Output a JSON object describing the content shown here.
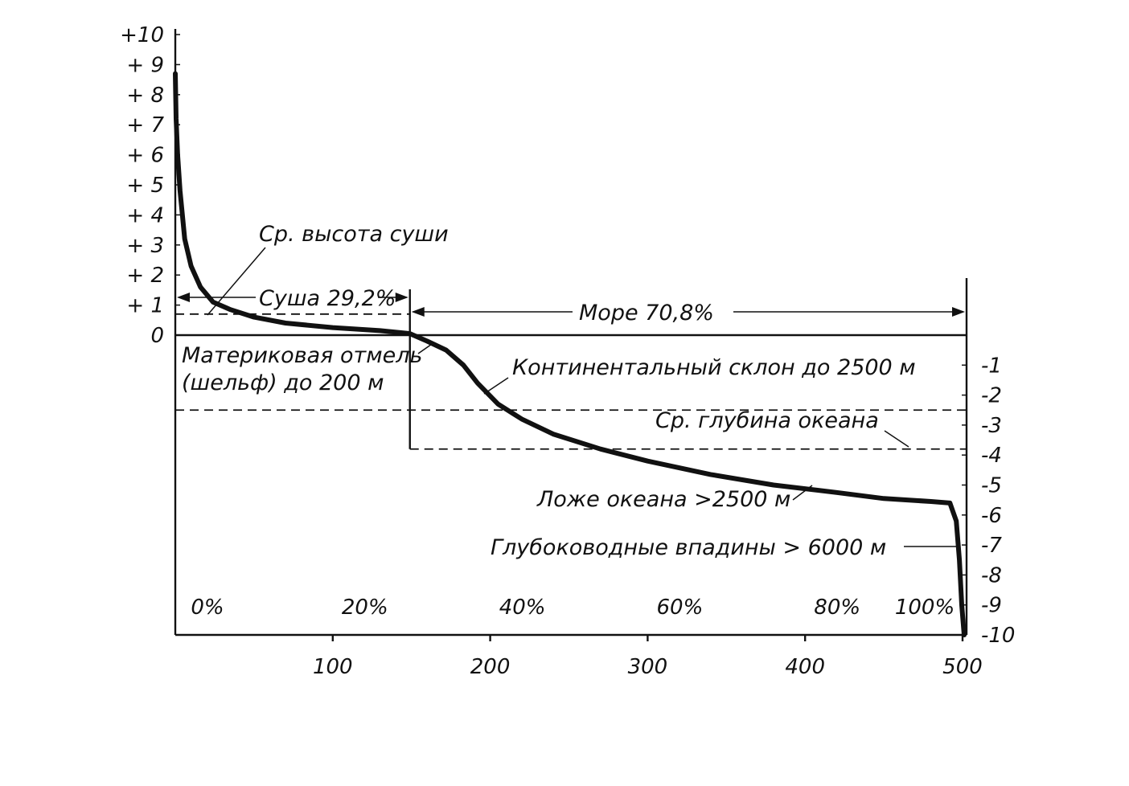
{
  "chart_data": {
    "type": "line",
    "title": "",
    "xlabel": "",
    "ylabel": "",
    "x_ticks_bottom": [
      "100",
      "200",
      "300",
      "400",
      "500"
    ],
    "x_ticks_top": [
      "0%",
      "20%",
      "40%",
      "60%",
      "80%",
      "100%"
    ],
    "y_ticks_left": [
      "+10",
      "+ 9",
      "+ 8",
      "+ 7",
      "+ 6",
      "+ 5",
      "+ 4",
      "+ 3",
      "+ 2",
      "+ 1",
      "0"
    ],
    "y_ticks_right": [
      "-1",
      "-2",
      "-3",
      "-4",
      "-5",
      "-6",
      "-7",
      "-8",
      "-9",
      "-10"
    ],
    "xlim": [
      0,
      510
    ],
    "ylim": [
      -10,
      10
    ],
    "series": [
      {
        "name": "",
        "x": [
          0,
          0.5,
          1.5,
          3,
          6,
          10,
          16,
          24,
          35,
          50,
          70,
          100,
          130,
          149,
          160,
          172,
          183,
          192,
          205,
          220,
          240,
          270,
          300,
          340,
          380,
          420,
          450,
          480,
          492,
          496,
          498,
          499.5,
          501
        ],
        "y": [
          8.7,
          7.2,
          6.0,
          4.8,
          3.2,
          2.3,
          1.6,
          1.1,
          0.85,
          0.6,
          0.4,
          0.25,
          0.15,
          0.05,
          -0.2,
          -0.5,
          -1.0,
          -1.6,
          -2.3,
          -2.8,
          -3.3,
          -3.8,
          -4.2,
          -4.65,
          -5.0,
          -5.25,
          -5.45,
          -5.55,
          -5.6,
          -6.2,
          -7.5,
          -9.0,
          -10.0
        ]
      }
    ],
    "reference_lines": {
      "mean_land_height": 0.7,
      "mean_ocean_depth": -3.8,
      "continental_slope_depth": -2.5,
      "land_sea_boundary_x": 149
    },
    "annotations": {
      "mean_land_height": "Ср. высота суши",
      "land_share": "Суша 29,2%",
      "sea_share": "Море 70,8%",
      "shelf_line1": "Материковая отмель",
      "shelf_line2": "(шельф) до 200 м",
      "continental_slope": "Континентальный склон до 2500 м",
      "mean_ocean_depth": "Ср. глубина океана",
      "ocean_floor": "Ложе океана >2500 м",
      "deep_trenches": "Глубоководные впадины > 6000 м"
    }
  }
}
